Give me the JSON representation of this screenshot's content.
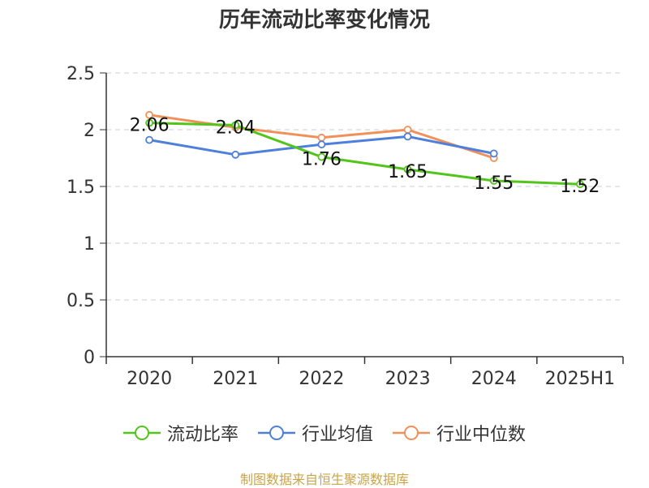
{
  "chart_data": {
    "type": "line",
    "title": "历年流动比率变化情况",
    "categories": [
      "2020",
      "2021",
      "2022",
      "2023",
      "2024",
      "2025H1"
    ],
    "ylim": [
      0,
      2.5
    ],
    "yticks": [
      "0",
      "0.5",
      "1",
      "1.5",
      "2",
      "2.5"
    ],
    "grid": true,
    "legend_position": "bottom",
    "series": [
      {
        "name": "流动比率",
        "color": "#52c41a",
        "values": [
          2.06,
          2.04,
          1.76,
          1.65,
          1.55,
          1.52
        ],
        "labels": [
          "2.06",
          "2.04",
          "1.76",
          "1.65",
          "1.55",
          "1.52"
        ]
      },
      {
        "name": "行业均值",
        "color": "#4e7fdb",
        "values": [
          1.91,
          1.78,
          1.87,
          1.94,
          1.79,
          null
        ],
        "labels": null
      },
      {
        "name": "行业中位数",
        "color": "#f0905a",
        "values": [
          2.13,
          2.02,
          1.93,
          2.0,
          1.75,
          null
        ],
        "labels": null
      }
    ]
  },
  "source": "制图数据来自恒生聚源数据库"
}
